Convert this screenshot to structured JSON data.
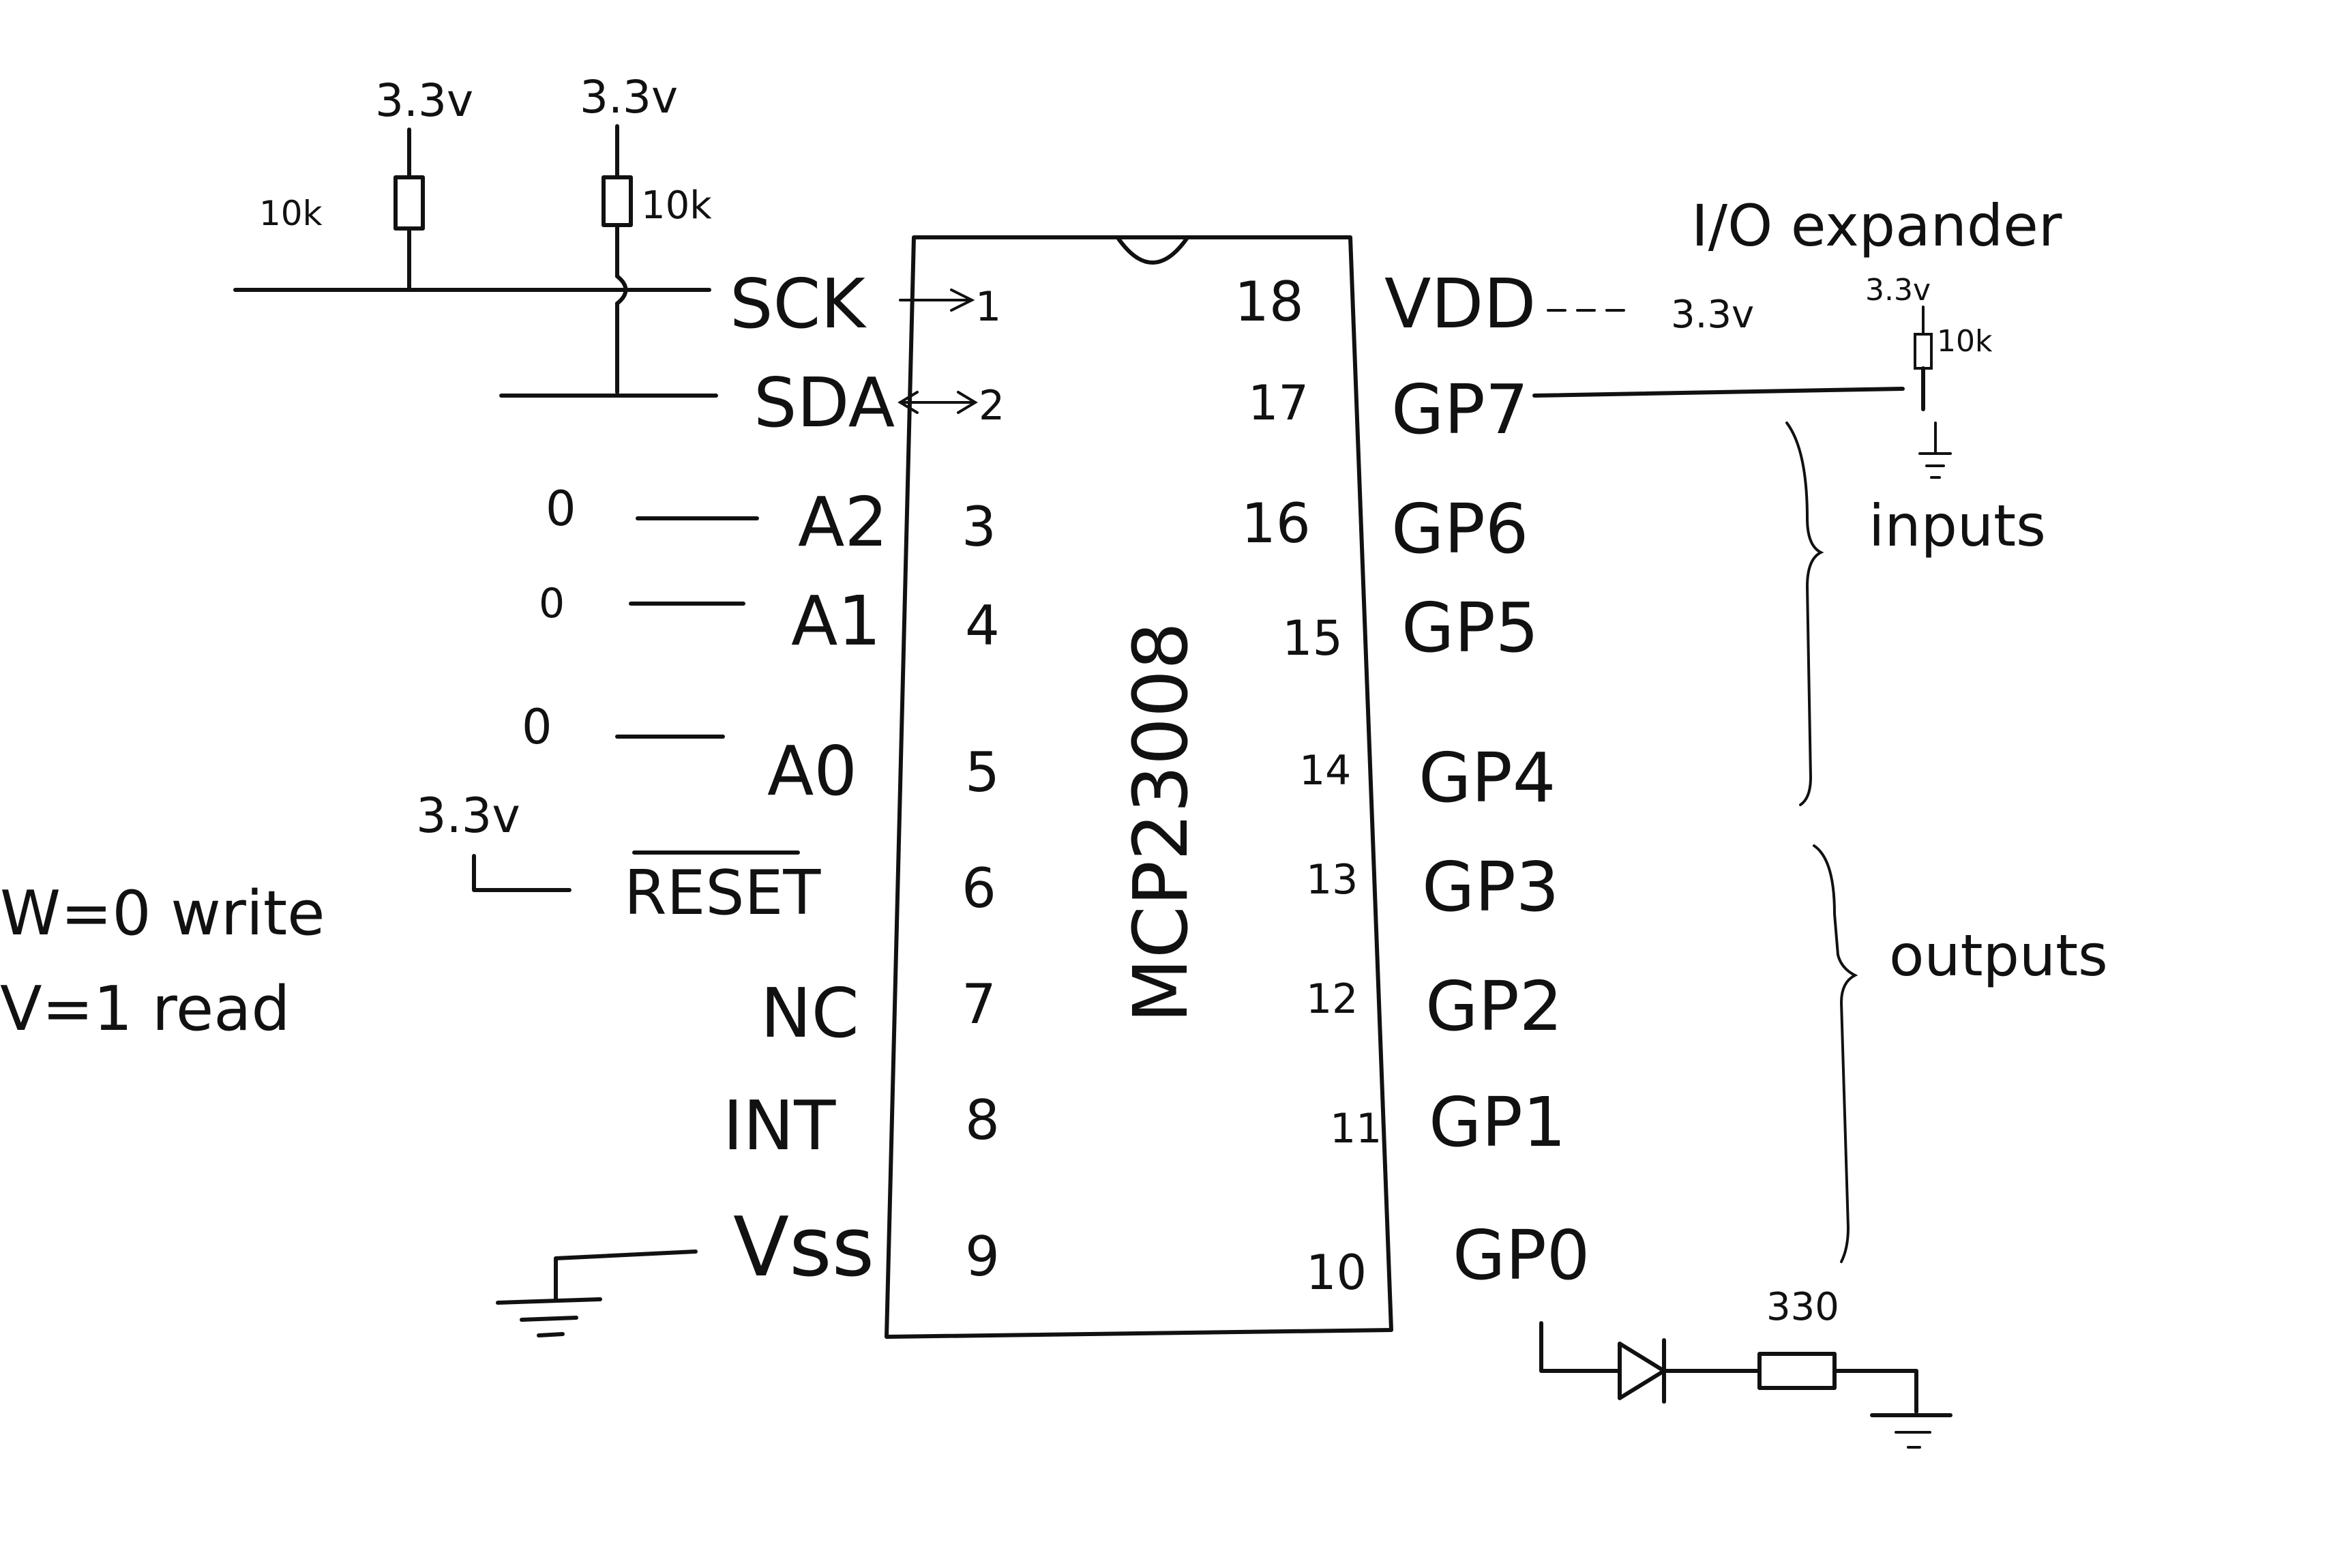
{
  "chip": {
    "name": "MCP23008",
    "left_pins": [
      {
        "label": "SCK",
        "num": "1"
      },
      {
        "label": "SDA",
        "num": "2"
      },
      {
        "label": "A2",
        "num": "3"
      },
      {
        "label": "A1",
        "num": "4"
      },
      {
        "label": "A0",
        "num": "5"
      },
      {
        "label": "RESET",
        "num": "6"
      },
      {
        "label": "NC",
        "num": "7"
      },
      {
        "label": "INT",
        "num": "8"
      },
      {
        "label": "Vss",
        "num": "9"
      }
    ],
    "right_pins": [
      {
        "label": "VDD",
        "num": "18"
      },
      {
        "label": "GP7",
        "num": "17"
      },
      {
        "label": "GP6",
        "num": "16"
      },
      {
        "label": "GP5",
        "num": "15"
      },
      {
        "label": "GP4",
        "num": "14"
      },
      {
        "label": "GP3",
        "num": "13"
      },
      {
        "label": "GP2",
        "num": "12"
      },
      {
        "label": "GP1",
        "num": "11"
      },
      {
        "label": "GP0",
        "num": "10"
      }
    ]
  },
  "annotations": {
    "title": "I/O expander",
    "inputs": "inputs",
    "outputs": "outputs",
    "rw_write": "W=0  write",
    "rw_read": "V=1   read",
    "supply_vdd": "3.3v",
    "supply_reset": "3.3v",
    "supply_pullup_scl": "3.3v",
    "supply_pullup_sda": "3.3v",
    "supply_gp7": "3.3v",
    "res_scl": "10k",
    "res_sda": "10k",
    "res_gp7": "10k",
    "res_led": "330",
    "addr_a2": "0",
    "addr_a1": "0",
    "addr_a0": "0"
  }
}
